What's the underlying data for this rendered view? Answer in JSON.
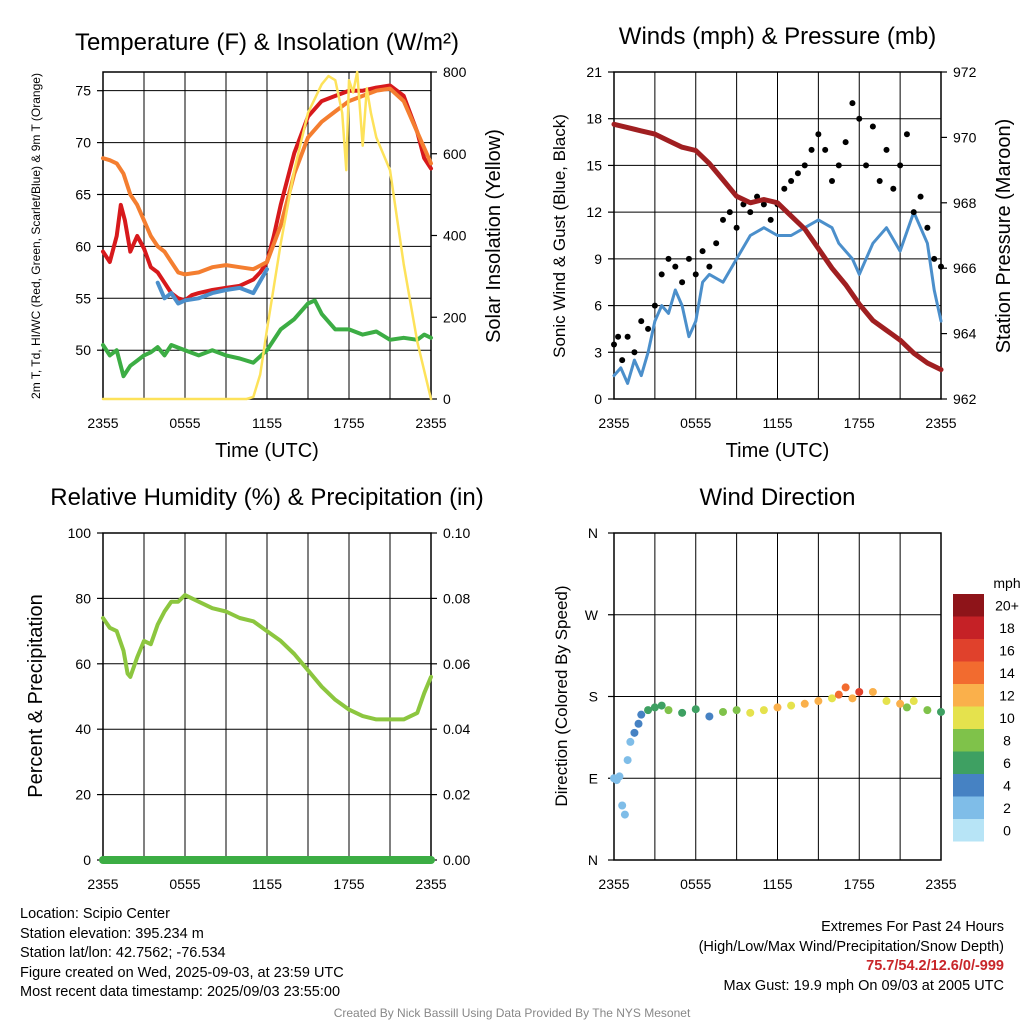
{
  "chart_data": [
    {
      "type": "line",
      "title": "Temperature (F) & Insolation (W/m²)",
      "xlabel": "Time (UTC)",
      "ylabel": "2m T, Td, HI/WC (Red, Green, Scarlet/Blue) & 9m T (Orange)",
      "ylabel2": "Solar Insolation (Yellow)",
      "x_tick_labels": [
        "2355",
        "0555",
        "1155",
        "1755",
        "2355"
      ],
      "x_hours": [
        0,
        6,
        12,
        18,
        24
      ],
      "ylim": [
        45.3,
        76.8
      ],
      "y_ticks": [
        50,
        55,
        60,
        65,
        70,
        75
      ],
      "ylim2": [
        0,
        800
      ],
      "y2_ticks": [
        0,
        200,
        400,
        600,
        800
      ],
      "series": [
        {
          "name": "2m T",
          "color": "#d7191c",
          "axis": "left",
          "x": [
            0,
            0.5,
            1,
            1.3,
            1.6,
            2,
            2.5,
            3,
            3.5,
            4,
            4.5,
            5,
            5.5,
            6,
            6.5,
            7,
            8,
            9,
            10,
            11,
            11.5,
            12,
            12.5,
            13,
            14,
            15,
            16,
            17,
            18,
            19,
            20,
            21,
            22,
            23,
            23.5,
            24
          ],
          "y": [
            59.5,
            58.5,
            61,
            64,
            62.5,
            59.5,
            61,
            59.8,
            58,
            57.5,
            56.5,
            55.5,
            55,
            54.8,
            55.3,
            55.5,
            55.8,
            56,
            56.2,
            56.8,
            57.5,
            58.5,
            61,
            64,
            69,
            72.5,
            74,
            74.5,
            75,
            75,
            75.3,
            75.5,
            74.5,
            71,
            68.5,
            67.5
          ]
        },
        {
          "name": "9m T",
          "color": "#f47e30",
          "axis": "left",
          "x": [
            0,
            0.5,
            1,
            1.5,
            2,
            2.5,
            3,
            3.5,
            4,
            4.5,
            5,
            5.5,
            6,
            7,
            8,
            9,
            10,
            11,
            12,
            13,
            14,
            15,
            16,
            17,
            18,
            19,
            20,
            21,
            22,
            23,
            24
          ],
          "y": [
            68.5,
            68.3,
            68,
            67,
            65,
            64,
            62.5,
            61,
            60,
            59.5,
            58.5,
            57.5,
            57.3,
            57.5,
            58,
            58.2,
            58,
            57.8,
            58.5,
            62,
            67,
            70.5,
            72,
            73,
            74,
            74.5,
            75,
            75.2,
            74,
            71,
            68
          ]
        },
        {
          "name": "HI/WC",
          "color": "#4b8fcb",
          "axis": "left",
          "x": [
            4,
            4.5,
            5,
            5.5,
            6,
            7,
            8,
            9,
            10,
            11,
            12
          ],
          "y": [
            56.5,
            55,
            55.5,
            54.5,
            54.8,
            55,
            55.5,
            55.8,
            56,
            55.5,
            57.8
          ]
        },
        {
          "name": "Td",
          "color": "#3cad44",
          "axis": "left",
          "x": [
            0,
            0.5,
            1,
            1.5,
            2,
            2.5,
            3,
            3.5,
            4,
            4.5,
            5,
            6,
            7,
            8,
            9,
            10,
            11,
            12,
            13,
            14,
            15,
            15.5,
            16,
            17,
            18,
            19,
            20,
            21,
            22,
            23,
            23.5,
            24
          ],
          "y": [
            50.5,
            49.5,
            50,
            47.5,
            48.5,
            49,
            49.5,
            49.8,
            50.3,
            49.5,
            50.5,
            50,
            49.5,
            50,
            49.5,
            49.2,
            48.8,
            50,
            52,
            53,
            54.5,
            54.8,
            53.5,
            52,
            52,
            51.5,
            51.8,
            51,
            51.2,
            51,
            51.5,
            51.2
          ]
        },
        {
          "name": "Solar Insolation",
          "color": "#fde25a",
          "axis": "right",
          "x": [
            0,
            2,
            4,
            6,
            8,
            10,
            10.5,
            11,
            11.5,
            12,
            13,
            14,
            15,
            16,
            16.5,
            17,
            17.5,
            17.8,
            18,
            18.3,
            18.6,
            19,
            19.3,
            19.6,
            20,
            21,
            22,
            23,
            24
          ],
          "y": [
            0,
            0,
            0,
            0,
            0,
            0,
            0,
            5,
            60,
            170,
            380,
            560,
            700,
            770,
            790,
            780,
            700,
            560,
            780,
            750,
            800,
            620,
            760,
            700,
            640,
            560,
            330,
            140,
            0
          ]
        }
      ]
    },
    {
      "type": "scatter",
      "title": "Winds (mph) & Pressure (mb)",
      "xlabel": "Time (UTC)",
      "ylabel": "Sonic Wind & Gust (Blue, Black)",
      "ylabel2": "Station Pressure (Maroon)",
      "x_tick_labels": [
        "2355",
        "0555",
        "1155",
        "1755",
        "2355"
      ],
      "ylim": [
        0,
        21
      ],
      "y_ticks": [
        0,
        3,
        6,
        9,
        12,
        15,
        18,
        21
      ],
      "ylim2": [
        962,
        972
      ],
      "y2_ticks": [
        962,
        964,
        966,
        968,
        970,
        972
      ],
      "series": [
        {
          "name": "Sonic Wind",
          "color": "#4b8fcb",
          "axis": "left",
          "x": [
            0,
            0.5,
            1,
            1.5,
            2,
            2.5,
            3,
            3.5,
            4,
            4.5,
            5,
            5.5,
            6,
            6.5,
            7,
            8,
            9,
            10,
            11,
            12,
            13,
            14,
            15,
            16,
            16.5,
            17,
            17.5,
            18,
            19,
            20,
            21,
            22,
            23,
            23.5,
            24
          ],
          "y": [
            1.5,
            2,
            1,
            2.5,
            1.5,
            3,
            5,
            6,
            5.5,
            7,
            6,
            4,
            5,
            7.5,
            8,
            7.5,
            9,
            10.5,
            11,
            10.5,
            10.5,
            11,
            11.5,
            11,
            10,
            9.5,
            9,
            8,
            10,
            11,
            9.5,
            12,
            10,
            7,
            5
          ]
        },
        {
          "name": "Gust",
          "color": "#000000",
          "axis": "left",
          "marker": "dot",
          "x": [
            0,
            0.3,
            0.6,
            1,
            1.5,
            2,
            2.5,
            3,
            3.5,
            4,
            4.5,
            5,
            5.5,
            6,
            6.5,
            7,
            7.5,
            8,
            8.5,
            9,
            9.5,
            10,
            10.5,
            11,
            11.5,
            12,
            12.5,
            13,
            13.5,
            14,
            14.5,
            15,
            15.5,
            16,
            16.5,
            17,
            17.5,
            18,
            18.5,
            19,
            19.5,
            20,
            20.5,
            21,
            21.5,
            22,
            22.5,
            23,
            23.5,
            24
          ],
          "y": [
            3.5,
            4,
            2.5,
            4,
            3,
            5,
            4.5,
            6,
            8,
            9,
            8.5,
            7.5,
            9,
            8,
            9.5,
            8.5,
            10,
            11.5,
            12,
            11,
            12.5,
            12,
            13,
            12.5,
            11.5,
            12.5,
            13.5,
            14,
            14.5,
            15,
            16,
            17,
            16,
            14,
            15,
            16.5,
            19,
            18,
            15,
            17.5,
            14,
            16,
            13.5,
            15,
            17,
            12,
            13,
            11,
            9,
            8.5
          ]
        },
        {
          "name": "Station Pressure",
          "color": "#a01f21",
          "axis": "right",
          "x": [
            0,
            1,
            2,
            3,
            4,
            5,
            6,
            7,
            8,
            9,
            10,
            11,
            12,
            13,
            14,
            15,
            16,
            17,
            18,
            19,
            20,
            21,
            22,
            23,
            24
          ],
          "y": [
            970.4,
            970.3,
            970.2,
            970.1,
            969.9,
            969.7,
            969.6,
            969.2,
            968.7,
            968.2,
            968.0,
            968.1,
            968.0,
            967.6,
            967.2,
            966.6,
            966.0,
            965.5,
            964.9,
            964.4,
            964.1,
            963.8,
            963.4,
            963.1,
            962.9
          ]
        }
      ]
    },
    {
      "type": "line",
      "title": "Relative Humidity (%) & Precipitation (in)",
      "ylabel": "Percent & Precipitation",
      "x_tick_labels": [
        "2355",
        "0555",
        "1155",
        "1755",
        "2355"
      ],
      "ylim": [
        0,
        100
      ],
      "y_ticks": [
        0,
        20,
        40,
        60,
        80,
        100
      ],
      "ylim2": [
        0,
        0.1
      ],
      "y2_ticks": [
        "0.00",
        "0.02",
        "0.04",
        "0.06",
        "0.08",
        "0.10"
      ],
      "series": [
        {
          "name": "Relative Humidity",
          "color": "#8cc63f",
          "axis": "left",
          "x": [
            0,
            0.5,
            1,
            1.5,
            1.8,
            2,
            2.5,
            3,
            3.5,
            4,
            4.5,
            5,
            5.5,
            6,
            7,
            8,
            9,
            10,
            11,
            12,
            13,
            14,
            15,
            16,
            17,
            18,
            19,
            20,
            21,
            22,
            23,
            23.5,
            24
          ],
          "y": [
            74,
            71,
            70,
            64,
            57,
            56,
            62,
            67,
            66,
            72,
            76,
            79,
            79,
            81,
            79,
            77,
            76,
            74,
            73,
            70,
            67,
            63,
            58,
            53,
            49,
            46,
            44,
            43,
            43,
            43,
            45,
            51,
            56
          ]
        },
        {
          "name": "Precipitation",
          "color": "#3cad44",
          "axis": "right",
          "x": [
            0,
            24
          ],
          "y": [
            0,
            0
          ]
        }
      ]
    },
    {
      "type": "scatter",
      "title": "Wind Direction",
      "ylabel": "Direction (Colored By Speed)",
      "x_tick_labels": [
        "2355",
        "0555",
        "1155",
        "1755",
        "2355"
      ],
      "y_tick_labels": [
        "N",
        "E",
        "S",
        "W",
        "N"
      ],
      "ylim_deg": [
        0,
        360
      ],
      "legend_title": "mph",
      "legend": [
        {
          "label": "0",
          "color": "#b7e4f6"
        },
        {
          "label": "2",
          "color": "#7fbde8"
        },
        {
          "label": "4",
          "color": "#4682c3"
        },
        {
          "label": "6",
          "color": "#3ea062"
        },
        {
          "label": "8",
          "color": "#7fc24a"
        },
        {
          "label": "10",
          "color": "#e5e24d"
        },
        {
          "label": "12",
          "color": "#fab04b"
        },
        {
          "label": "14",
          "color": "#f26b2f"
        },
        {
          "label": "16",
          "color": "#e0412c"
        },
        {
          "label": "18",
          "color": "#c52126"
        },
        {
          "label": "20+",
          "color": "#8e1419"
        }
      ],
      "points": {
        "x": [
          0,
          0.2,
          0.4,
          0.6,
          0.8,
          1,
          1.2,
          1.5,
          1.8,
          2,
          2.5,
          3,
          3.5,
          4,
          5,
          6,
          7,
          8,
          9,
          10,
          11,
          12,
          13,
          14,
          15,
          16,
          16.5,
          17,
          17.5,
          18,
          19,
          20,
          21,
          21.5,
          22,
          23,
          24
        ],
        "dir": [
          90,
          88,
          92,
          60,
          50,
          110,
          130,
          140,
          150,
          160,
          165,
          168,
          170,
          165,
          162,
          166,
          158,
          163,
          165,
          162,
          165,
          168,
          170,
          172,
          175,
          178,
          182,
          190,
          178,
          185,
          185,
          175,
          172,
          168,
          175,
          165,
          163
        ],
        "speed": [
          2,
          2,
          1,
          1,
          1,
          2,
          2,
          3,
          3,
          4,
          5,
          6,
          5,
          7,
          6,
          5,
          4,
          7,
          8,
          9,
          10,
          11,
          10,
          11,
          12,
          10,
          14,
          13,
          11,
          15,
          12,
          9,
          11,
          8,
          10,
          7,
          6
        ]
      }
    }
  ],
  "info": {
    "location": "Location: Scipio Center",
    "elevation": "Station elevation: 395.234 m",
    "latlon": "Station lat/lon: 42.7562; -76.534",
    "created": "Figure created on Wed, 2025-09-03, at 23:59 UTC",
    "recent": "Most recent data timestamp: 2025/09/03 23:55:00"
  },
  "extremes": {
    "title": "Extremes For Past 24 Hours",
    "subtitle": "(High/Low/Max Wind/Precipitation/Snow Depth)",
    "values": "75.7/54.2/12.6/0/-999",
    "gust": "Max Gust: 19.9 mph On 09/03 at 2005 UTC"
  },
  "credit": "Created By Nick Bassill Using Data Provided By The NYS Mesonet"
}
